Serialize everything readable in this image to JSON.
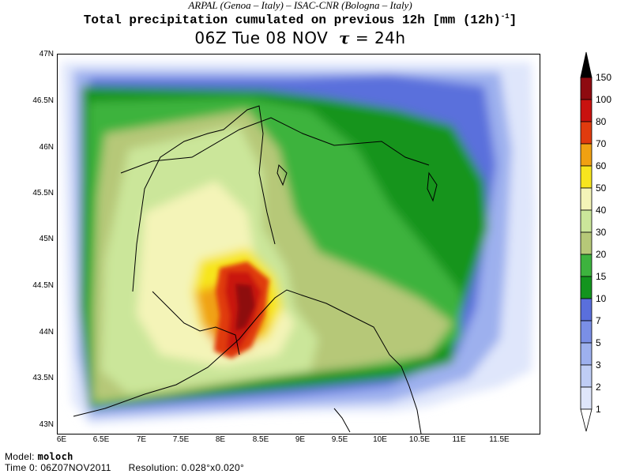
{
  "header": {
    "org_line": "ARPAL (Genoa – Italy)   –   ISAC-CNR (Bologna – Italy)",
    "title_main": "Total precipitation cumulated on previous 12h [mm (12h)",
    "title_exp": "-1",
    "title_close": "]",
    "valid_time": "06Z Tue 08 NOV",
    "tau_symbol": "τ",
    "lead_time": "= 24h"
  },
  "map": {
    "lat_ticks": [
      "47N",
      "46.5N",
      "46N",
      "45.5N",
      "45N",
      "44.5N",
      "44N",
      "43.5N",
      "43N"
    ],
    "lon_ticks": [
      "6E",
      "6.5E",
      "7E",
      "7.5E",
      "8E",
      "8.5E",
      "9E",
      "9.5E",
      "10E",
      "10.5E",
      "11E",
      "11.5E"
    ],
    "lat_range": [
      43,
      47
    ],
    "lon_range": [
      6,
      12
    ]
  },
  "colorbar": {
    "levels": [
      "1",
      "2",
      "3",
      "5",
      "7",
      "10",
      "15",
      "20",
      "30",
      "40",
      "50",
      "60",
      "70",
      "80",
      "100",
      "150"
    ],
    "colors": [
      "#dfe6fb",
      "#bfcdf5",
      "#9db0ee",
      "#7a8fe6",
      "#5a6fdc",
      "#13941e",
      "#3db33e",
      "#b6c878",
      "#cbe69a",
      "#f4f4b8",
      "#f7e51e",
      "#f0a112",
      "#e03b0e",
      "#c9120f",
      "#8e0a10",
      "#000000"
    ]
  },
  "footer": {
    "model_label": "Model:",
    "model_value": "moloch",
    "time0_label": "Time 0:",
    "time0_value": "06Z07NOV2011",
    "resolution_label": "Resolution:",
    "resolution_value": "0.028°x0.020°"
  }
}
